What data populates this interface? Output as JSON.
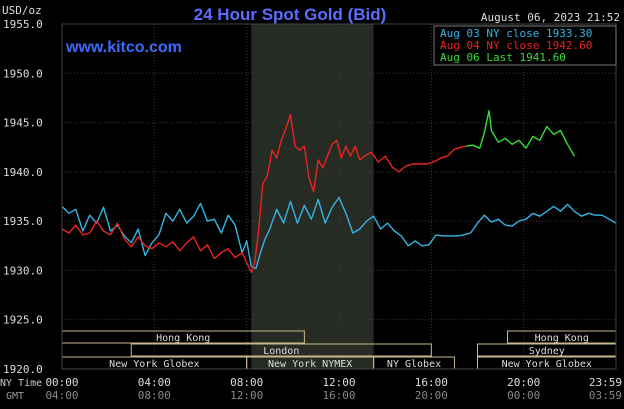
{
  "header": {
    "title": "24 Hour Spot Gold (Bid)",
    "timestamp": "August 06, 2023 21:52",
    "website": "www.kitco.com",
    "unit_label": "USD/oz"
  },
  "legend": [
    {
      "label": "Aug 03 NY close 1933.30",
      "color": "#33b5e5"
    },
    {
      "label": "Aug 04 NY close 1942.60",
      "color": "#ee2222"
    },
    {
      "label": "Aug 06 Last 1941.60",
      "color": "#33dd33"
    }
  ],
  "row_labels": {
    "ny_time": "NY Time",
    "gmt": "GMT"
  },
  "ny_ticks": [
    "00:00",
    "04:00",
    "08:00",
    "12:00",
    "16:00",
    "20:00",
    "23:59"
  ],
  "gmt_ticks": [
    "04:00",
    "08:00",
    "12:00",
    "16:00",
    "20:00",
    "00:00",
    "03:59"
  ],
  "markets": [
    {
      "label": "Hong Kong",
      "row": 0,
      "start": 0,
      "end": 10.5
    },
    {
      "label": "Hong Kong",
      "row": 0,
      "start": 19.3,
      "end": 24
    },
    {
      "label": "London",
      "row": 1,
      "start": 3,
      "end": 16
    },
    {
      "label": "Sydney",
      "row": 1,
      "start": 18,
      "end": 24
    },
    {
      "label": "New York Globex",
      "row": 2,
      "start": 0,
      "end": 8
    },
    {
      "label": "New York NYMEX",
      "row": 2,
      "start": 8,
      "end": 13.5
    },
    {
      "label": "NY Globex",
      "row": 2,
      "start": 13.5,
      "end": 17
    },
    {
      "label": "New York Globex",
      "row": 2,
      "start": 18,
      "end": 24
    }
  ],
  "chart_data": {
    "type": "line",
    "title": "24 Hour Spot Gold (Bid)",
    "ylabel": "USD/oz",
    "xlabel": "NY Time",
    "xlim": [
      0,
      24
    ],
    "ylim": [
      1920.0,
      1955.0
    ],
    "yticks": [
      "1920.0",
      "1925.0",
      "1930.0",
      "1935.0",
      "1940.0",
      "1945.0",
      "1950.0",
      "1955.0"
    ],
    "shaded_period": [
      8.2,
      13.5
    ],
    "grid": true,
    "series": [
      {
        "name": "Aug 03 NY close 1933.30",
        "color": "#33b5e5",
        "x": [
          0,
          0.3,
          0.6,
          0.9,
          1.2,
          1.5,
          1.8,
          2.1,
          2.4,
          2.7,
          3.0,
          3.3,
          3.6,
          3.9,
          4.2,
          4.5,
          4.8,
          5.1,
          5.4,
          5.7,
          6.0,
          6.3,
          6.6,
          6.9,
          7.2,
          7.5,
          7.8,
          8.0,
          8.2,
          8.4,
          8.6,
          8.8,
          9.0,
          9.3,
          9.6,
          9.9,
          10.2,
          10.5,
          10.8,
          11.1,
          11.4,
          11.7,
          12.0,
          12.3,
          12.6,
          12.9,
          13.2,
          13.5,
          13.8,
          14.1,
          14.4,
          14.7,
          15.0,
          15.3,
          15.6,
          15.9,
          16.2,
          16.5,
          16.8,
          17.1,
          17.4,
          17.7,
          18.0,
          18.3,
          18.6,
          18.9,
          19.2,
          19.5,
          19.8,
          20.1,
          20.4,
          20.7,
          21.0,
          21.3,
          21.6,
          21.9,
          22.2,
          22.5,
          22.8,
          23.1,
          23.4,
          23.7,
          23.99
        ],
        "values": [
          1936.5,
          1935.8,
          1936.2,
          1934.0,
          1935.6,
          1934.8,
          1936.4,
          1934.0,
          1934.6,
          1933.5,
          1932.8,
          1934.2,
          1931.5,
          1932.8,
          1933.6,
          1935.8,
          1935.0,
          1936.2,
          1934.8,
          1935.5,
          1936.8,
          1935.0,
          1935.2,
          1933.8,
          1935.6,
          1934.6,
          1931.8,
          1933.0,
          1930.4,
          1930.2,
          1931.8,
          1933.2,
          1934.2,
          1936.2,
          1934.8,
          1937.0,
          1934.8,
          1936.6,
          1935.2,
          1937.2,
          1934.8,
          1936.4,
          1937.4,
          1935.8,
          1933.8,
          1934.2,
          1935.0,
          1935.5,
          1934.2,
          1934.8,
          1934.0,
          1933.5,
          1932.5,
          1933.0,
          1932.5,
          1932.6,
          1933.6,
          1933.5,
          1933.5,
          1933.5,
          1933.6,
          1933.8,
          1934.8,
          1935.6,
          1934.9,
          1935.2,
          1934.6,
          1934.5,
          1935.0,
          1935.2,
          1935.8,
          1935.5,
          1936.0,
          1936.5,
          1936.0,
          1936.7,
          1936.0,
          1935.5,
          1935.8,
          1935.6,
          1935.6,
          1935.2,
          1934.8
        ]
      },
      {
        "name": "Aug 04 NY close 1942.60",
        "color": "#ee2222",
        "x": [
          0,
          0.3,
          0.6,
          0.9,
          1.2,
          1.5,
          1.8,
          2.1,
          2.4,
          2.7,
          3.0,
          3.3,
          3.6,
          3.9,
          4.2,
          4.5,
          4.8,
          5.1,
          5.4,
          5.7,
          6.0,
          6.3,
          6.6,
          6.9,
          7.2,
          7.5,
          7.8,
          8.0,
          8.2,
          8.35,
          8.5,
          8.7,
          8.9,
          9.1,
          9.3,
          9.5,
          9.7,
          9.9,
          10.1,
          10.3,
          10.5,
          10.7,
          10.9,
          11.1,
          11.3,
          11.5,
          11.7,
          11.9,
          12.1,
          12.3,
          12.5,
          12.7,
          12.9,
          13.1,
          13.4,
          13.7,
          14.0,
          14.3,
          14.6,
          14.9,
          15.2,
          15.5,
          15.8,
          16.1,
          16.4,
          16.7,
          17.0,
          17.3,
          17.5
        ],
        "values": [
          1934.2,
          1933.8,
          1934.6,
          1933.6,
          1933.8,
          1935.0,
          1934.0,
          1933.6,
          1934.8,
          1933.2,
          1932.4,
          1933.4,
          1932.5,
          1932.2,
          1932.8,
          1932.4,
          1932.9,
          1932.0,
          1932.8,
          1933.4,
          1932.0,
          1932.6,
          1931.2,
          1931.8,
          1932.2,
          1931.3,
          1931.8,
          1930.8,
          1929.8,
          1930.8,
          1933.6,
          1938.8,
          1939.6,
          1942.2,
          1941.4,
          1943.2,
          1944.4,
          1945.8,
          1942.6,
          1942.2,
          1942.6,
          1939.4,
          1938.0,
          1941.2,
          1940.4,
          1941.6,
          1942.8,
          1943.2,
          1941.4,
          1942.6,
          1941.6,
          1942.6,
          1941.2,
          1941.6,
          1942.0,
          1941.0,
          1941.6,
          1940.5,
          1940.0,
          1940.6,
          1940.8,
          1940.8,
          1940.8,
          1941.0,
          1941.4,
          1941.6,
          1942.3,
          1942.5,
          1942.6
        ]
      },
      {
        "name": "Aug 06 Last 1941.60",
        "color": "#33dd33",
        "x": [
          17.5,
          17.8,
          18.1,
          18.3,
          18.5,
          18.6,
          18.9,
          19.2,
          19.5,
          19.8,
          20.1,
          20.4,
          20.7,
          21.0,
          21.3,
          21.6,
          21.9,
          22.2
        ],
        "values": [
          1942.6,
          1942.7,
          1942.4,
          1944.0,
          1946.2,
          1944.2,
          1943.0,
          1943.4,
          1942.8,
          1943.2,
          1942.4,
          1943.6,
          1943.2,
          1944.6,
          1943.8,
          1944.2,
          1942.8,
          1941.6
        ]
      }
    ]
  }
}
